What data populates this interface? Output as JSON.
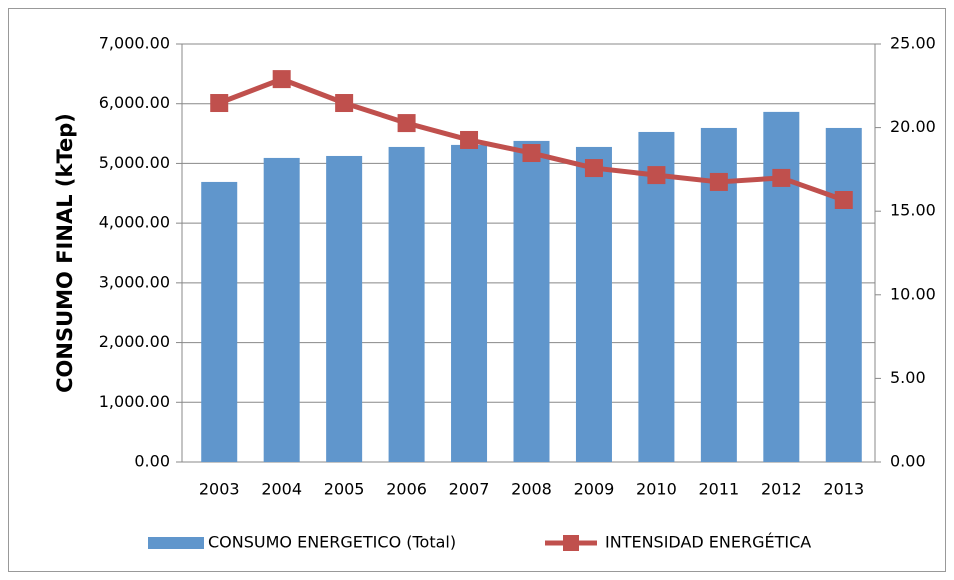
{
  "chart_data": {
    "type": "bar-line",
    "y_label": "CONSUMO FINAL (kTep)",
    "categories": [
      "2003",
      "2004",
      "2005",
      "2006",
      "2007",
      "2008",
      "2009",
      "2010",
      "2011",
      "2012",
      "2013"
    ],
    "series": [
      {
        "name": "CONSUMO ENERGETICO (Total)",
        "type": "bar",
        "color": "#6096cc",
        "values": [
          4690,
          5092,
          5125,
          5276,
          5310,
          5377,
          5276,
          5527,
          5594,
          5863,
          5594
        ]
      },
      {
        "name": "INTENSIDAD ENERGÉTICA",
        "type": "line",
        "axis": "y2",
        "color": "#c0504d",
        "values": [
          21.47,
          22.9,
          21.47,
          20.27,
          19.26,
          18.48,
          17.58,
          17.16,
          16.75,
          16.99,
          15.67
        ]
      }
    ],
    "ylim": [
      0,
      7000
    ],
    "yticks": [
      {
        "value": 0,
        "label": "0.00"
      },
      {
        "value": 1000,
        "label": "1,000.00"
      },
      {
        "value": 2000,
        "label": "2,000.00"
      },
      {
        "value": 3000,
        "label": "3,000.00"
      },
      {
        "value": 4000,
        "label": "4,000.00"
      },
      {
        "value": 5000,
        "label": "5,000.00"
      },
      {
        "value": 6000,
        "label": "6,000.00"
      },
      {
        "value": 7000,
        "label": "7,000.00"
      }
    ],
    "y2lim": [
      0,
      25
    ],
    "y2ticks": [
      {
        "value": 0,
        "label": "0.00"
      },
      {
        "value": 5,
        "label": "5.00"
      },
      {
        "value": 10,
        "label": "10.00"
      },
      {
        "value": 15,
        "label": "15.00"
      },
      {
        "value": 20,
        "label": "20.00"
      },
      {
        "value": 25,
        "label": "25.00"
      }
    ],
    "grid": true,
    "legend": "bottom"
  }
}
